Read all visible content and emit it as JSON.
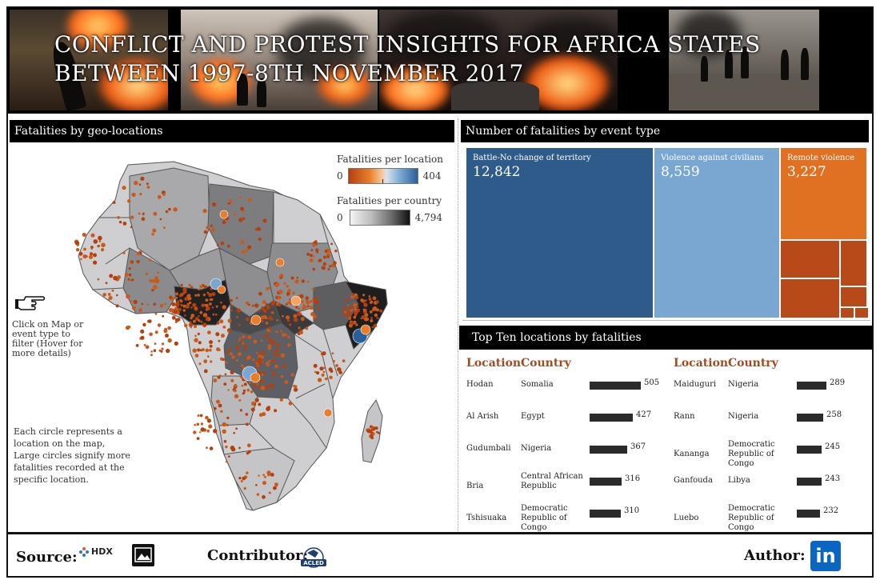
{
  "header": {
    "title_line1": "CONFLICT AND PROTEST INSIGHTS FOR AFRICA STATES",
    "title_line2": "BETWEEN 1997-8TH NOVEMBER 2017"
  },
  "map_panel": {
    "title": "Fatalities by geo-locations",
    "legend_location_title": "Fatalities per location",
    "legend_location_min": "0",
    "legend_location_max": "404",
    "legend_country_title": "Fatalities per country",
    "legend_country_min": "0",
    "legend_country_max": "4,794",
    "instruction": "Click on Map or event type to filter (Hover for more details)",
    "note": "Each circle represents a location on the map, Large circles signify more fatalities recorded at the specific location.",
    "hand_icon": "pointing-hand-icon"
  },
  "treemap_panel": {
    "title": "Number of fatalities by event type",
    "tiles": [
      {
        "label": "Battle-No change of territory",
        "value": "12,842",
        "color": "#2f5b8a"
      },
      {
        "label": "Violence against civilians",
        "value": "8,559",
        "color": "#7aa7d1"
      },
      {
        "label": "Remote violence",
        "value": "3,227",
        "color": "#e07022"
      }
    ]
  },
  "top_ten": {
    "title": "Top Ten locations by fatalities",
    "col_location": "Location",
    "col_country": "Country",
    "left": [
      {
        "location": "Hodan",
        "country": "Somalia",
        "value": 505
      },
      {
        "location": "Al Arish",
        "country": "Egypt",
        "value": 427
      },
      {
        "location": "Gudumbali",
        "country": "Nigeria",
        "value": 367
      },
      {
        "location": "Bria",
        "country": "Central African Republic",
        "value": 316
      },
      {
        "location": "Tshisuaka",
        "country": "Democratic Republic of Congo",
        "value": 310
      }
    ],
    "right": [
      {
        "location": "Maiduguri",
        "country": "Nigeria",
        "value": 289
      },
      {
        "location": "Rann",
        "country": "Nigeria",
        "value": 258
      },
      {
        "location": "Kananga",
        "country": "Democratic Republic of Congo",
        "value": 245
      },
      {
        "location": "Ganfouda",
        "country": "Libya",
        "value": 243
      },
      {
        "location": "Luebo",
        "country": "Democratic Republic of Congo",
        "value": 232
      }
    ]
  },
  "footer": {
    "source_label": "Source:",
    "hdx_text": "HDX",
    "contributor_label": "Contributor:",
    "acled_text": "ACLED",
    "author_label": "Author:",
    "linkedin_text": "in"
  }
}
